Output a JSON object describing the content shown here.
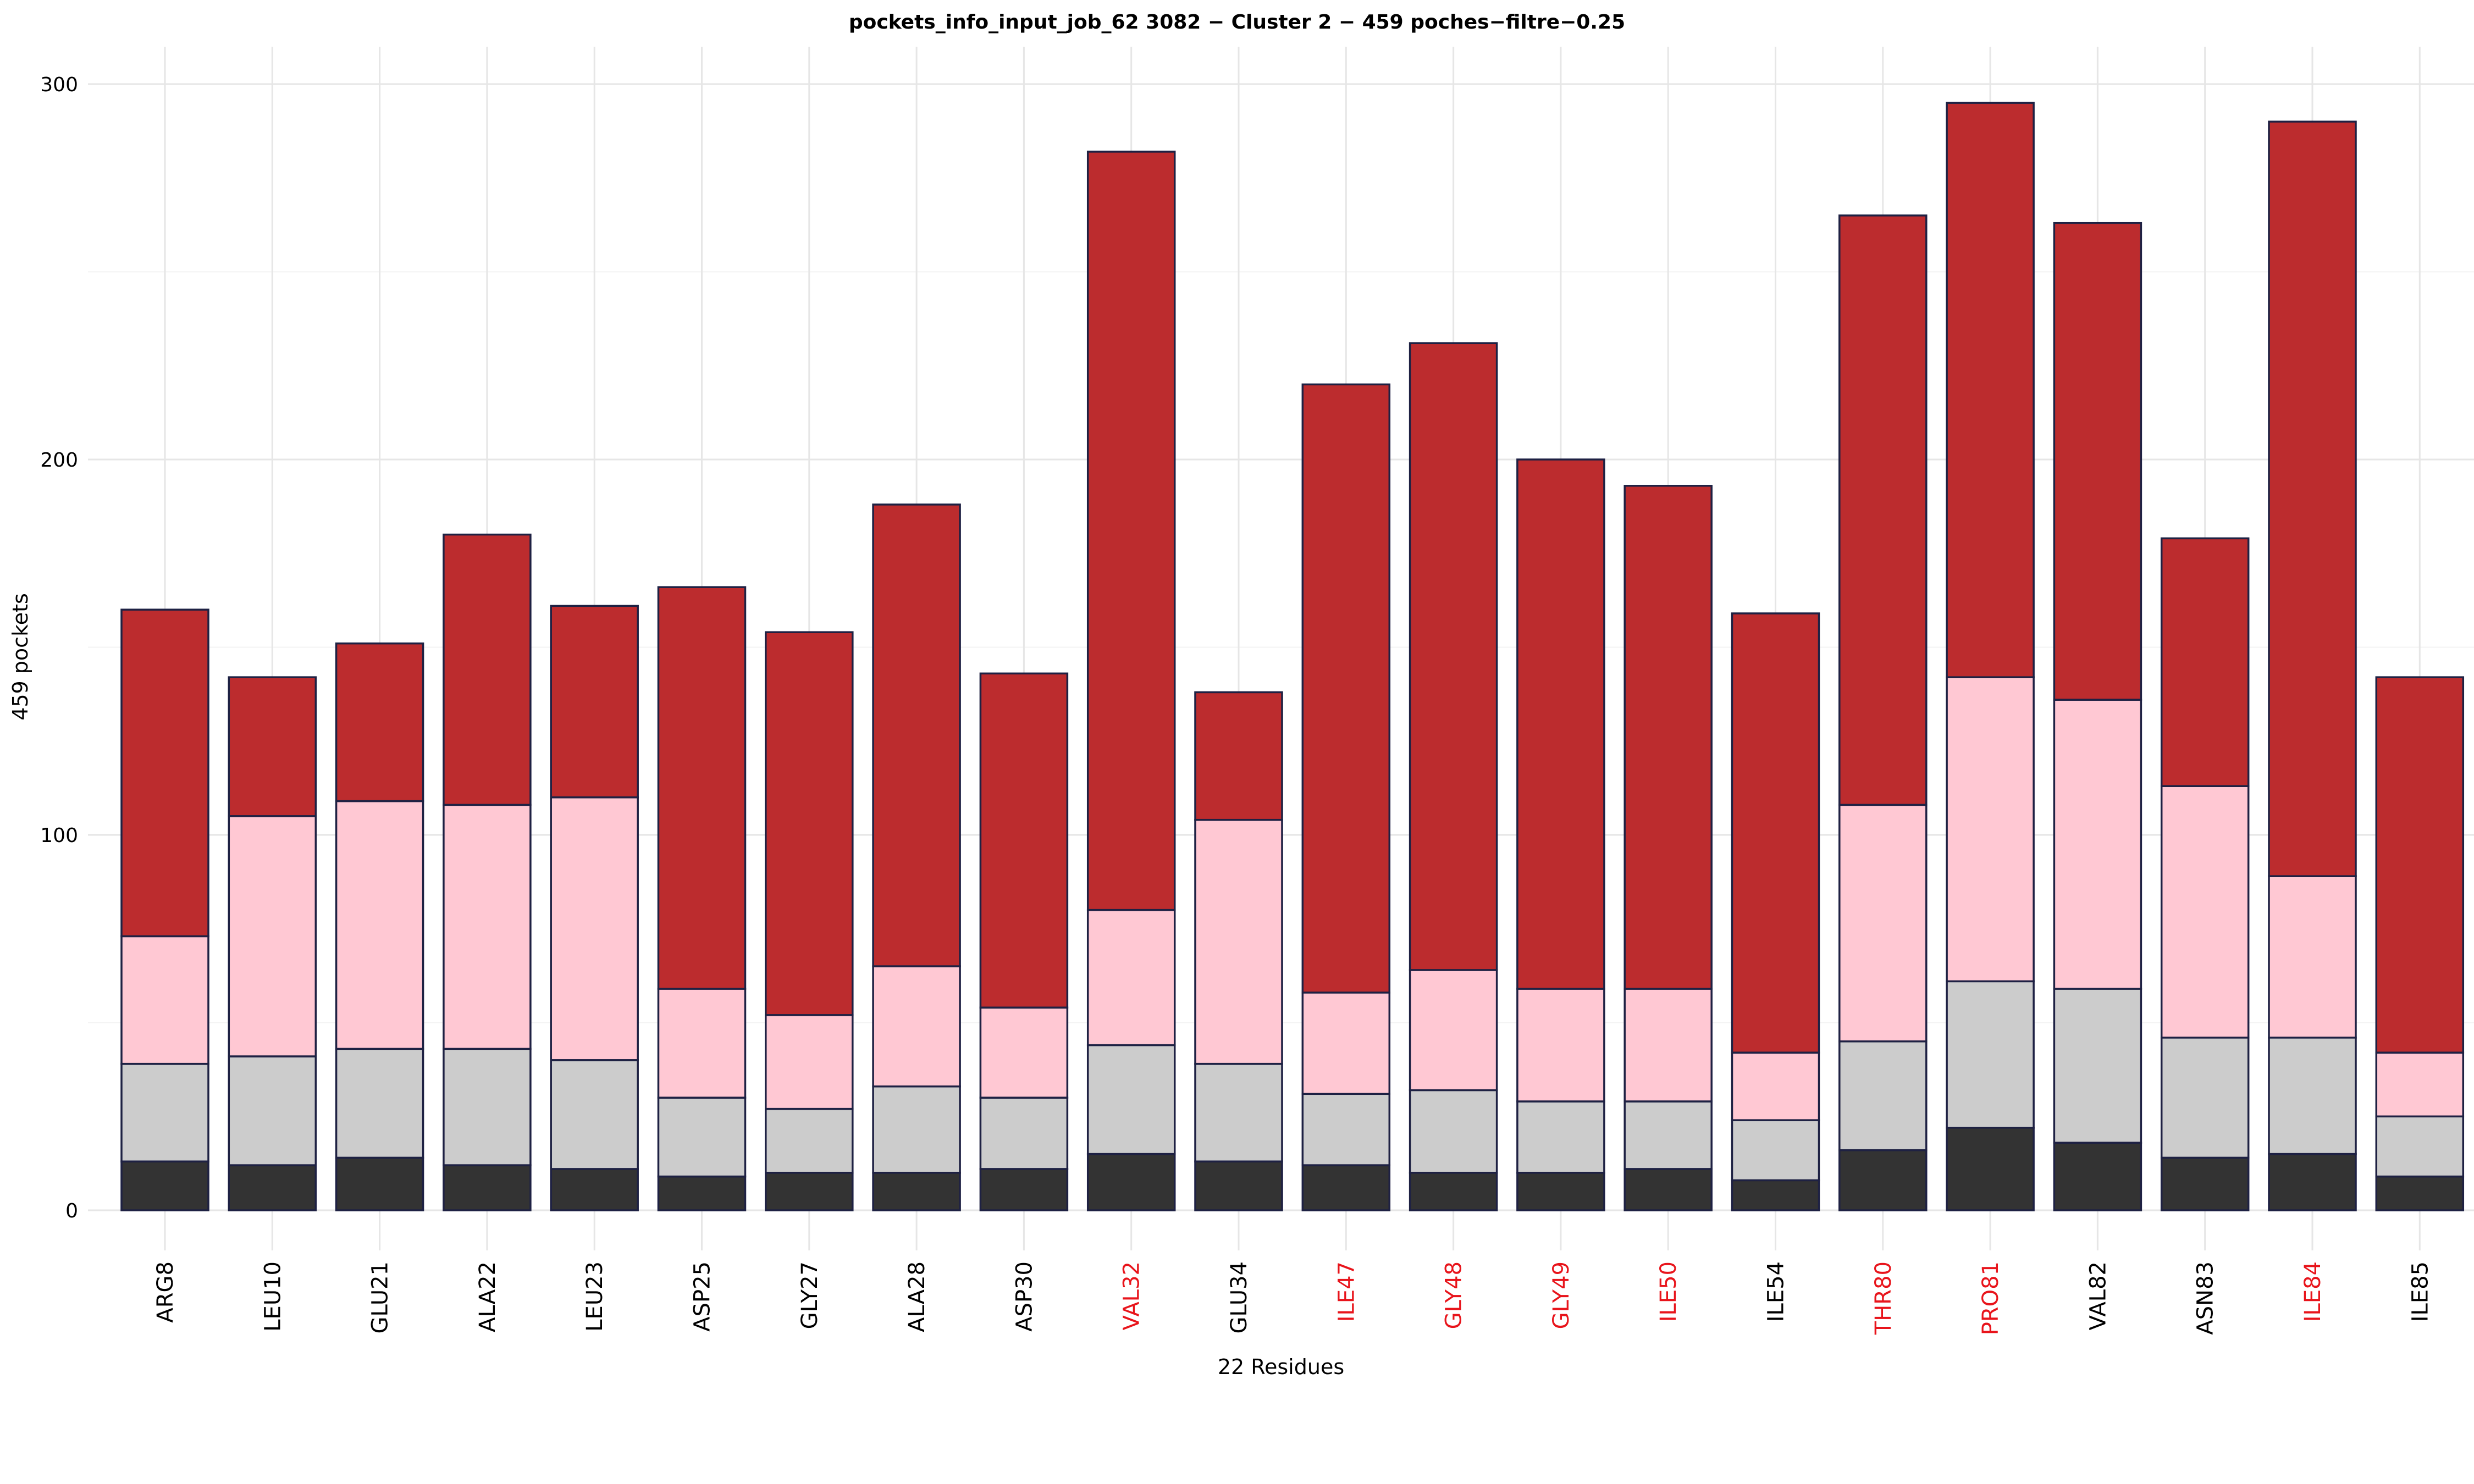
{
  "chart_data": {
    "type": "bar",
    "stacked": true,
    "title": "pockets_info_input_job_62 3082 − Cluster 2 − 459 poches−filtre−0.25",
    "xlabel": "22 Residues",
    "ylabel": "459  pockets",
    "ylim": [
      -10,
      310
    ],
    "yticks": [
      0,
      100,
      200,
      300
    ],
    "grid": true,
    "legend": "none",
    "categories": [
      "ARG8",
      "LEU10",
      "GLU21",
      "ALA22",
      "LEU23",
      "ASP25",
      "GLY27",
      "ALA28",
      "ASP30",
      "VAL32",
      "GLU34",
      "ILE47",
      "GLY48",
      "GLY49",
      "ILE50",
      "ILE54",
      "THR80",
      "PRO81",
      "VAL82",
      "ASN83",
      "ILE84",
      "ILE85"
    ],
    "category_colors": [
      "#000000",
      "#000000",
      "#000000",
      "#000000",
      "#000000",
      "#000000",
      "#000000",
      "#000000",
      "#000000",
      "#e8141b",
      "#000000",
      "#e8141b",
      "#e8141b",
      "#e8141b",
      "#e8141b",
      "#000000",
      "#e8141b",
      "#e8141b",
      "#000000",
      "#000000",
      "#e8141b",
      "#000000"
    ],
    "series": [
      {
        "color": "#333333",
        "values": [
          13,
          12,
          14,
          12,
          11,
          9,
          10,
          10,
          11,
          15,
          13,
          12,
          10,
          10,
          11,
          8,
          16,
          22,
          18,
          14,
          15,
          9
        ]
      },
      {
        "color": "#cccccc",
        "values": [
          26,
          29,
          29,
          31,
          29,
          21,
          17,
          23,
          19,
          29,
          26,
          19,
          22,
          19,
          18,
          16,
          29,
          39,
          41,
          32,
          31,
          16
        ]
      },
      {
        "color": "#ffc8d3",
        "values": [
          34,
          64,
          66,
          65,
          70,
          29,
          25,
          32,
          24,
          36,
          65,
          27,
          32,
          30,
          30,
          18,
          63,
          81,
          77,
          67,
          43,
          17
        ]
      },
      {
        "color": "#bc2c2e",
        "values": [
          87,
          37,
          42,
          72,
          51,
          107,
          102,
          123,
          89,
          202,
          34,
          162,
          167,
          141,
          134,
          117,
          157,
          153,
          127,
          66,
          201,
          100
        ]
      }
    ]
  }
}
